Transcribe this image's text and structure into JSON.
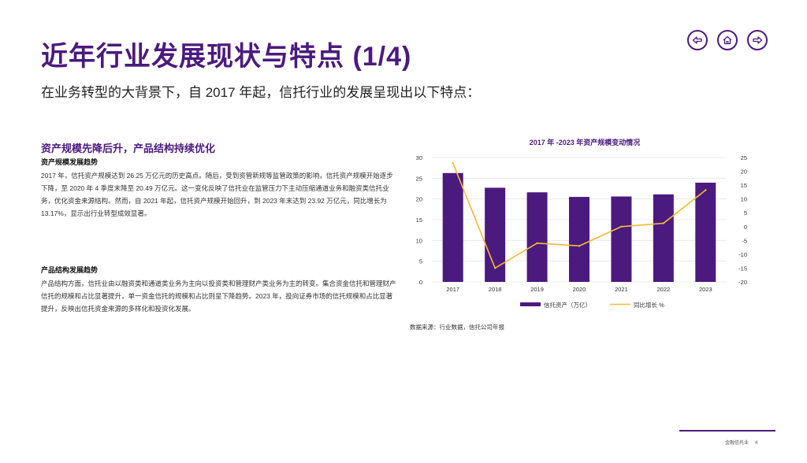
{
  "page": {
    "title": "近年行业发展现状与特点 (1/4)",
    "subtitle": "在业务转型的大背景下，自 2017 年起，信托行业的发展呈现出以下特点："
  },
  "nav": {
    "back_icon": "arrow-left-icon",
    "home_icon": "home-icon",
    "forward_icon": "arrow-right-icon",
    "color": "#4b1a7e"
  },
  "left": {
    "section_heading": "资产规模先降后升，产品结构持续优化",
    "block1": {
      "heading": "资产规模发展趋势",
      "text": "2017 年，信托资产规模达到 26.25 万亿元的历史高点。随后，受到资管新规等监管政策的影响，信托资产规模开始逐步下降，至 2020 年 4 季度末降至 20.49 万亿元。这一变化反映了信托业在监管压力下主动压缩通道业务和融资类信托业务，优化资金来源结构。然而，自 2021 年起，信托资产规模开始回升，到 2023 年末达到 23.92 万亿元，同比增长为 13.17%，显示出行业转型成效显著。"
    },
    "block2": {
      "heading": "产品结构发展趋势",
      "text": "产品结构方面，信托业由以融资类和通道类业务为主向以投资类和管理财产类业务为主的转变。集合资金信托和管理财产信托的规模和占比显著提升，单一资金信托的规模和占比则呈下降趋势。2023 年，投向证券市场的信托规模和占比显著提升，反映出信托资金来源的多样化和投资化发展。"
    }
  },
  "chart_data": {
    "type": "bar",
    "title": "2017 年 -2023 年资产规模变动情况",
    "categories": [
      "2017",
      "2018",
      "2019",
      "2020",
      "2021",
      "2022",
      "2023"
    ],
    "series": [
      {
        "name": "信托资产（万亿）",
        "type": "bar",
        "axis": "left",
        "color": "#4b1a7e",
        "values": [
          26.25,
          22.7,
          21.6,
          20.49,
          20.6,
          21.1,
          23.92
        ]
      },
      {
        "name": "同比增长 %",
        "type": "line",
        "axis": "right",
        "color": "#f5b935",
        "values": [
          23.0,
          -15.0,
          -6.0,
          -7.0,
          0.0,
          1.2,
          13.17
        ]
      }
    ],
    "y_left": {
      "min": 0,
      "max": 30,
      "ticks": [
        0,
        5,
        10,
        15,
        20,
        25,
        30
      ]
    },
    "y_right": {
      "min": -20,
      "max": 25,
      "ticks": [
        -20,
        -15,
        -10,
        -5,
        0,
        5,
        10,
        15,
        20,
        25
      ]
    },
    "legend": "bottom-center",
    "grid": true,
    "source": "数据来源：行业数据，信托公司年报"
  },
  "footer": {
    "label": "金融信托业",
    "page_number": "4"
  }
}
